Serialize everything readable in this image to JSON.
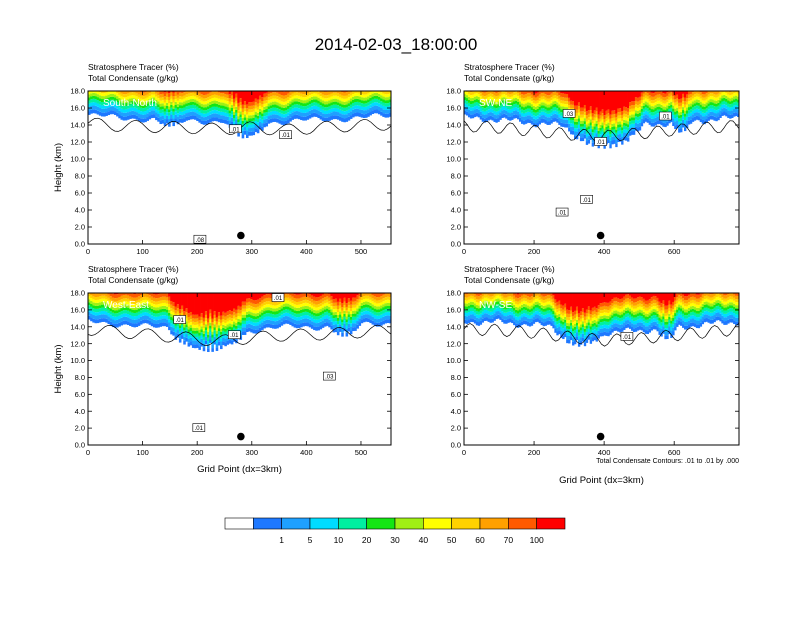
{
  "title": "2014-02-03_18:00:00",
  "colors": {
    "bins": [
      "#ffffff",
      "#1e78ff",
      "#1ea0ff",
      "#00dcff",
      "#00f0a0",
      "#14e614",
      "#a0f014",
      "#ffff00",
      "#ffd200",
      "#ffa000",
      "#ff5a00",
      "#ff0000"
    ],
    "ink": "#000000"
  },
  "chart_data": [
    {
      "type": "heatmap",
      "field1": "Stratosphere Tracer   (%)",
      "field2": "Total Condensate   (g/kg)",
      "tag": "South-North",
      "xlabel": "",
      "ylabel": "Height (km)",
      "xlim": [
        0,
        555
      ],
      "ylim": [
        0,
        18
      ],
      "xticks": [
        "0",
        "100",
        "200",
        "300",
        "400",
        "500"
      ],
      "xtick_values": [
        0,
        100,
        200,
        300,
        400,
        500
      ],
      "yticks": [
        "0.0",
        "2.0",
        "4.0",
        "6.0",
        "8.0",
        "10.0",
        "12.0",
        "14.0",
        "16.0",
        "18.0"
      ],
      "ytick_values": [
        0,
        2,
        4,
        6,
        8,
        10,
        12,
        14,
        16,
        18
      ],
      "tropopause_km": [
        [
          0,
          15.1
        ],
        [
          60,
          14.8
        ],
        [
          120,
          14.7
        ],
        [
          180,
          14.6
        ],
        [
          240,
          14.4
        ],
        [
          300,
          14.6
        ],
        [
          360,
          14.3
        ],
        [
          420,
          14.6
        ],
        [
          480,
          14.8
        ],
        [
          555,
          15.0
        ]
      ],
      "dips": [
        [
          290,
          80,
          12.3
        ],
        [
          150,
          60,
          13.8
        ]
      ],
      "marker": {
        "x": 280,
        "y": 1.0
      },
      "contours": [
        {
          "label": ".01",
          "x": 270,
          "y": 13.5
        },
        {
          "label": ".01",
          "x": 362,
          "y": 12.8
        },
        {
          "label": ".08",
          "x": 205,
          "y": 0.5
        }
      ]
    },
    {
      "type": "heatmap",
      "field1": "Stratosphere Tracer   (%)",
      "field2": "Total Condensate   (g/kg)",
      "tag": "SW-NE",
      "xlabel": "",
      "ylabel": "",
      "xlim": [
        0,
        785
      ],
      "ylim": [
        0,
        18
      ],
      "xticks": [
        "0",
        "200",
        "400",
        "600"
      ],
      "xtick_values": [
        0,
        200,
        400,
        600
      ],
      "yticks": [
        "0.0",
        "2.0",
        "4.0",
        "6.0",
        "8.0",
        "10.0",
        "12.0",
        "14.0",
        "16.0",
        "18.0"
      ],
      "ytick_values": [
        0,
        2,
        4,
        6,
        8,
        10,
        12,
        14,
        16,
        18
      ],
      "tropopause_km": [
        [
          0,
          14.8
        ],
        [
          100,
          14.6
        ],
        [
          200,
          14.2
        ],
        [
          300,
          13.8
        ],
        [
          400,
          13.6
        ],
        [
          500,
          13.9
        ],
        [
          600,
          14.3
        ],
        [
          700,
          14.6
        ],
        [
          785,
          14.8
        ]
      ],
      "dips": [
        [
          400,
          230,
          11.2
        ],
        [
          620,
          60,
          13.0
        ]
      ],
      "marker": {
        "x": 390,
        "y": 1.0
      },
      "contours": [
        {
          "label": ".03",
          "x": 300,
          "y": 15.3
        },
        {
          "label": ".01",
          "x": 390,
          "y": 12.0
        },
        {
          "label": ".01",
          "x": 575,
          "y": 15.0
        },
        {
          "label": ".01",
          "x": 280,
          "y": 3.7
        },
        {
          "label": ".01",
          "x": 350,
          "y": 5.2
        }
      ]
    },
    {
      "type": "heatmap",
      "field1": "Stratosphere Tracer   (%)",
      "field2": "Total Condensate   (g/kg)",
      "tag": "West-East",
      "xlabel": "Grid Point (dx=3km)",
      "ylabel": "Height (km)",
      "xlim": [
        0,
        555
      ],
      "ylim": [
        0,
        18
      ],
      "xticks": [
        "0",
        "100",
        "200",
        "300",
        "400",
        "500"
      ],
      "xtick_values": [
        0,
        100,
        200,
        300,
        400,
        500
      ],
      "yticks": [
        "0.0",
        "2.0",
        "4.0",
        "6.0",
        "8.0",
        "10.0",
        "12.0",
        "14.0",
        "16.0",
        "18.0"
      ],
      "ytick_values": [
        0,
        2,
        4,
        6,
        8,
        10,
        12,
        14,
        16,
        18
      ],
      "tropopause_km": [
        [
          0,
          14.6
        ],
        [
          60,
          14.3
        ],
        [
          120,
          13.9
        ],
        [
          180,
          13.6
        ],
        [
          240,
          13.2
        ],
        [
          300,
          13.6
        ],
        [
          360,
          13.9
        ],
        [
          420,
          14.0
        ],
        [
          480,
          14.2
        ],
        [
          555,
          14.5
        ]
      ],
      "dips": [
        [
          220,
          150,
          11.0
        ],
        [
          470,
          60,
          12.8
        ]
      ],
      "marker": {
        "x": 280,
        "y": 1.0
      },
      "contours": [
        {
          "label": ".01",
          "x": 348,
          "y": 17.4
        },
        {
          "label": ".01",
          "x": 168,
          "y": 14.8
        },
        {
          "label": ".01",
          "x": 268,
          "y": 13.0
        },
        {
          "label": ".03",
          "x": 442,
          "y": 8.1
        },
        {
          "label": ".01",
          "x": 203,
          "y": 2.0
        }
      ]
    },
    {
      "type": "heatmap",
      "field1": "Stratosphere Tracer   (%)",
      "field2": "Total Condensate   (g/kg)",
      "tag": "NW-SE",
      "xlabel": "Grid Point (dx=3km)",
      "ylabel": "",
      "xlim": [
        0,
        785
      ],
      "ylim": [
        0,
        18
      ],
      "xticks": [
        "0",
        "200",
        "400",
        "600"
      ],
      "xtick_values": [
        0,
        200,
        400,
        600
      ],
      "yticks": [
        "0.0",
        "2.0",
        "4.0",
        "6.0",
        "8.0",
        "10.0",
        "12.0",
        "14.0",
        "16.0",
        "18.0"
      ],
      "ytick_values": [
        0,
        2,
        4,
        6,
        8,
        10,
        12,
        14,
        16,
        18
      ],
      "tropopause_km": [
        [
          0,
          14.6
        ],
        [
          100,
          14.5
        ],
        [
          200,
          14.2
        ],
        [
          300,
          13.7
        ],
        [
          400,
          13.3
        ],
        [
          500,
          13.5
        ],
        [
          600,
          13.9
        ],
        [
          700,
          14.3
        ],
        [
          785,
          14.6
        ]
      ],
      "dips": [
        [
          330,
          150,
          11.6
        ],
        [
          580,
          60,
          12.4
        ]
      ],
      "marker": {
        "x": 390,
        "y": 1.0
      },
      "contours": [
        {
          "label": ".01",
          "x": 465,
          "y": 12.8
        }
      ]
    }
  ],
  "legend": {
    "labels": [
      "1",
      "5",
      "10",
      "20",
      "30",
      "40",
      "50",
      "60",
      "70",
      "100"
    ]
  },
  "contour_note": "Total Condensate Contours: .01 to .01 by .000"
}
